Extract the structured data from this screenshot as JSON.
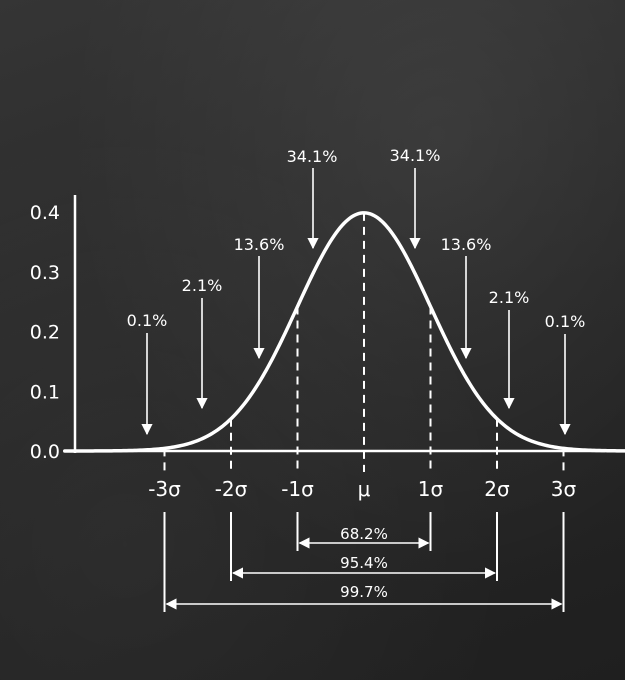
{
  "chart_data": {
    "type": "line",
    "title": "",
    "xlabel": "",
    "ylabel": "",
    "ylim": [
      0,
      0.45
    ],
    "xlim": [
      -4.5,
      4.0
    ],
    "yticks": [
      {
        "value": 0.0,
        "label": "0.0"
      },
      {
        "value": 0.1,
        "label": "0.1"
      },
      {
        "value": 0.2,
        "label": "0.2"
      },
      {
        "value": 0.3,
        "label": "0.3"
      },
      {
        "value": 0.4,
        "label": "0.4"
      }
    ],
    "xticks": [
      {
        "value": -3,
        "label": "-3σ"
      },
      {
        "value": -2,
        "label": "-2σ"
      },
      {
        "value": -1,
        "label": "-1σ"
      },
      {
        "value": 0,
        "label": "μ"
      },
      {
        "value": 1,
        "label": "1σ"
      },
      {
        "value": 2,
        "label": "2σ"
      },
      {
        "value": 3,
        "label": "3σ"
      }
    ],
    "curve": {
      "distribution": "normal",
      "mean": 0,
      "sd": 1
    },
    "region_labels": [
      {
        "label": "0.1%",
        "x": -3.3,
        "y": 0.03
      },
      {
        "label": "2.1%",
        "x": -2.5,
        "y": 0.075
      },
      {
        "label": "13.6%",
        "x": -1.5,
        "y": 0.18
      },
      {
        "label": "34.1%",
        "x": -0.6,
        "y": 0.37
      },
      {
        "label": "34.1%",
        "x": 0.6,
        "y": 0.37
      },
      {
        "label": "13.6%",
        "x": 1.5,
        "y": 0.18
      },
      {
        "label": "2.1%",
        "x": 2.4,
        "y": 0.075
      },
      {
        "label": "0.1%",
        "x": 3.3,
        "y": 0.03
      }
    ],
    "ranges": [
      {
        "label": "68.2%",
        "from": -1,
        "to": 1
      },
      {
        "label": "95.4%",
        "from": -2,
        "to": 2
      },
      {
        "label": "99.7%",
        "from": -3,
        "to": 3
      }
    ]
  },
  "colors": {
    "chalk": "#ffffff",
    "board": "#2a2a2a"
  }
}
